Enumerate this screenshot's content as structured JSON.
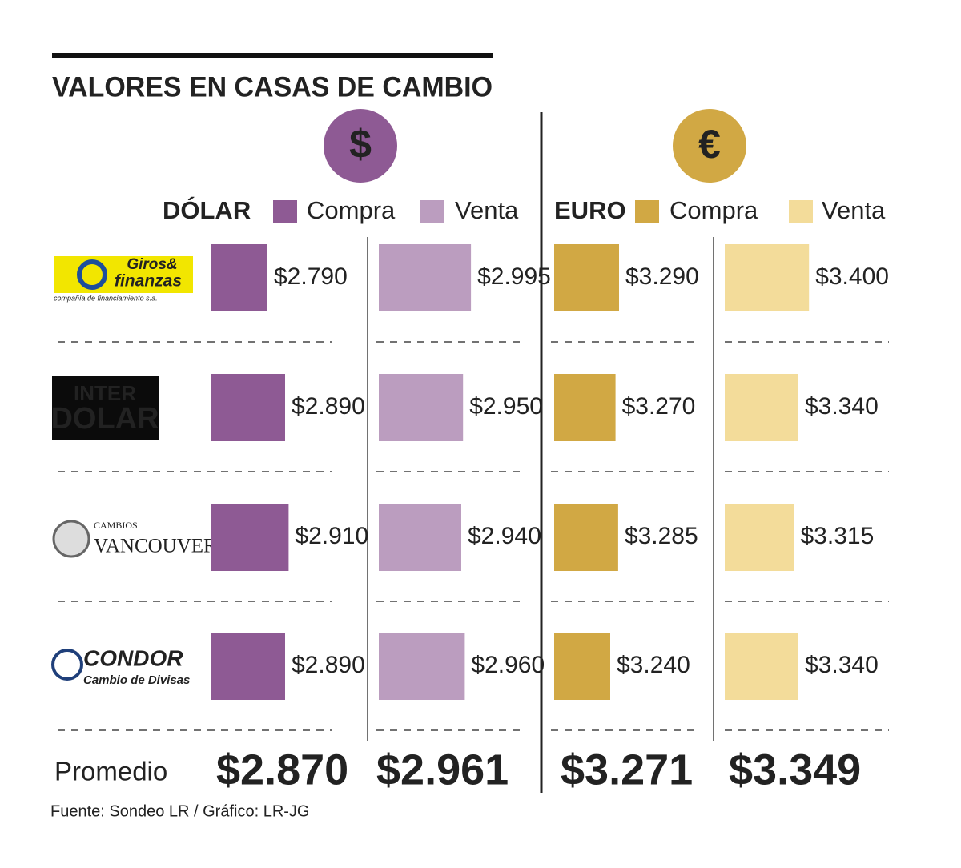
{
  "chart_data": {
    "type": "bar",
    "orientation": "horizontal",
    "title": "VALORES EN CASAS DE CAMBIO",
    "categories": [
      [
        "Giros&",
        "finanzas",
        "compañía de financiamiento s.a."
      ],
      [
        "INTER",
        "DOLAR"
      ],
      [
        "CAMBIOS",
        "VANCOUVER"
      ],
      [
        "CONDOR",
        "Cambio de Divisas"
      ]
    ],
    "groups": [
      {
        "name": "DÓLAR",
        "symbol": "$",
        "color": "#8e5a94",
        "series": [
          {
            "name": "Compra",
            "color": "#8e5a94",
            "values": [
              2790,
              2890,
              2910,
              2890
            ],
            "value_labels": [
              "$2.790",
              "$2.890",
              "$2.910",
              "$2.890"
            ],
            "average": 2870,
            "average_label": "$2.870"
          },
          {
            "name": "Venta",
            "color": "#bb9dbf",
            "values": [
              2995,
              2950,
              2940,
              2960
            ],
            "value_labels": [
              "$2.995",
              "$2.950",
              "$2.940",
              "$2.960"
            ],
            "average": 2961,
            "average_label": "$2.961"
          }
        ]
      },
      {
        "name": "EURO",
        "symbol": "€",
        "color": "#d1a844",
        "series": [
          {
            "name": "Compra",
            "color": "#d1a844",
            "values": [
              3290,
              3270,
              3285,
              3240
            ],
            "value_labels": [
              "$3.290",
              "$3.270",
              "$3.285",
              "$3.240"
            ],
            "average": 3271,
            "average_label": "$3.271"
          },
          {
            "name": "Venta",
            "color": "#f3dc9a",
            "values": [
              3400,
              3340,
              3315,
              3340
            ],
            "value_labels": [
              "$3.400",
              "$3.340",
              "$3.315",
              "$3.340"
            ],
            "average": 3349,
            "average_label": "$3.349"
          }
        ]
      }
    ],
    "average_name": "Promedio",
    "source": "Fuente: Sondeo LR / Gráfico: LR-JG"
  }
}
